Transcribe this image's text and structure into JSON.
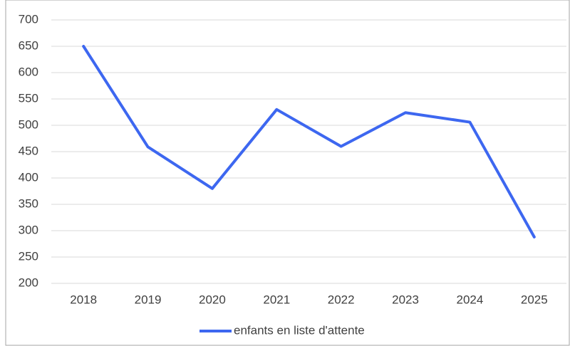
{
  "chart_data": {
    "type": "line",
    "categories": [
      "2018",
      "2019",
      "2020",
      "2021",
      "2022",
      "2023",
      "2024",
      "2025"
    ],
    "series": [
      {
        "name": "enfants en liste d'attente",
        "color": "#3d67f0",
        "values": [
          650,
          459,
          380,
          530,
          460,
          524,
          506,
          288
        ]
      }
    ],
    "ylim": [
      200,
      700
    ],
    "yticks": [
      200,
      250,
      300,
      350,
      400,
      450,
      500,
      550,
      600,
      650,
      700
    ],
    "grid": true,
    "legend": "bottom"
  }
}
